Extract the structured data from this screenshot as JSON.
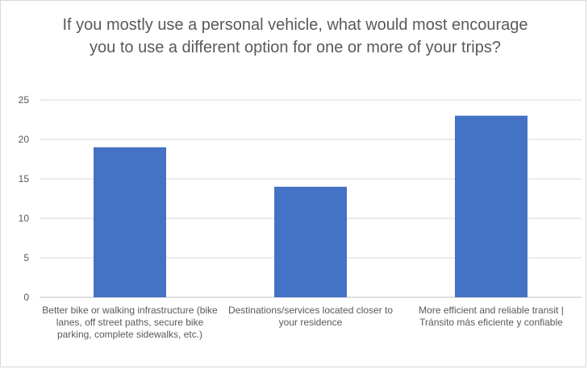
{
  "chart_data": {
    "type": "bar",
    "title": "If you mostly use a personal vehicle, what would most encourage you to use a different option for one or more of your trips?",
    "categories": [
      "Better bike or walking infrastructure (bike lanes, off street paths, secure bike parking, complete sidewalks, etc.)",
      "Destinations/services located closer to your residence",
      "More efficient and reliable transit | Tránsito más eficiente y confiable"
    ],
    "values": [
      19,
      14,
      23
    ],
    "yticks": [
      "0",
      "5",
      "10",
      "15",
      "20",
      "25"
    ],
    "ylim": [
      0,
      25
    ],
    "grid": true,
    "legend": "none",
    "bar_color": "#4472c4"
  }
}
